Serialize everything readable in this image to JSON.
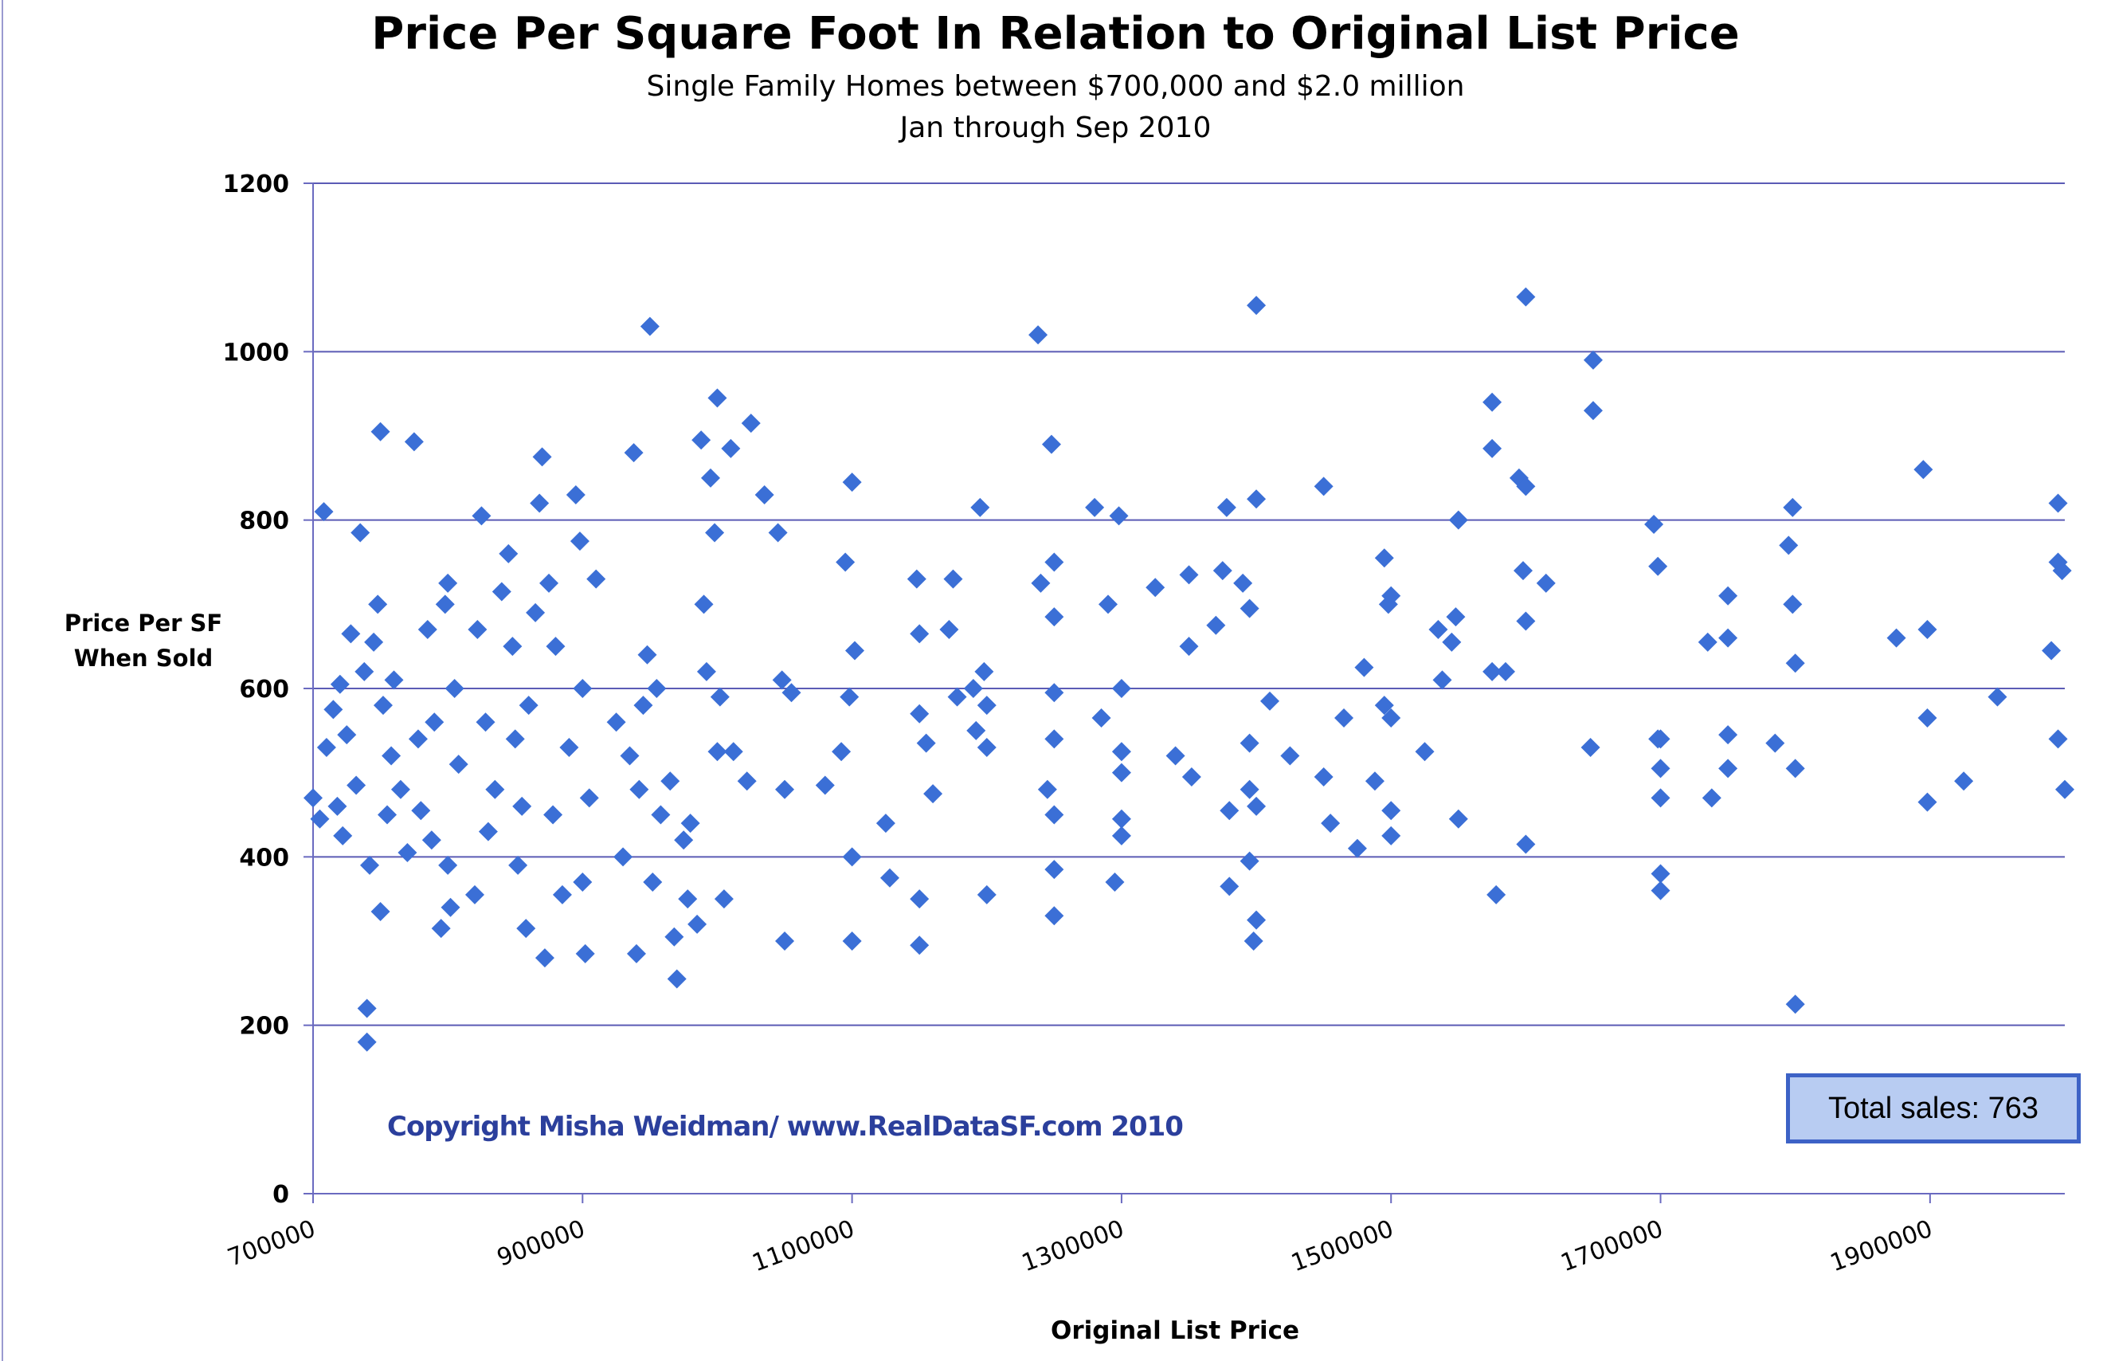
{
  "chart_data": {
    "type": "scatter",
    "title": "Price Per Square Foot In Relation to Original List Price",
    "subtitle": [
      "Single Family Homes between $700,000 and $2.0 million",
      "Jan through Sep 2010"
    ],
    "xlabel": "Original List Price",
    "ylabel": [
      "Price Per SF",
      "When Sold"
    ],
    "xlim": [
      700000,
      2000000
    ],
    "ylim": [
      0,
      1200
    ],
    "xticks": [
      700000,
      900000,
      1100000,
      1300000,
      1500000,
      1700000,
      1900000
    ],
    "yticks": [
      0,
      200,
      400,
      600,
      800,
      1000,
      1200
    ],
    "grid": "horizontal",
    "marker": "diamond",
    "color": "#3b6fd6",
    "annotation": "Copyright Misha Weidman/ www.RealDataSF.com 2010",
    "total_label": "Total sales: 763",
    "points": [
      [
        700000,
        470
      ],
      [
        705000,
        445
      ],
      [
        708000,
        810
      ],
      [
        710000,
        530
      ],
      [
        715000,
        575
      ],
      [
        718000,
        460
      ],
      [
        720000,
        605
      ],
      [
        722000,
        425
      ],
      [
        725000,
        545
      ],
      [
        728000,
        665
      ],
      [
        732000,
        485
      ],
      [
        735000,
        785
      ],
      [
        738000,
        620
      ],
      [
        740000,
        220
      ],
      [
        740000,
        180
      ],
      [
        742000,
        390
      ],
      [
        745000,
        655
      ],
      [
        748000,
        700
      ],
      [
        750000,
        905
      ],
      [
        750000,
        335
      ],
      [
        752000,
        580
      ],
      [
        755000,
        450
      ],
      [
        758000,
        520
      ],
      [
        760000,
        610
      ],
      [
        765000,
        480
      ],
      [
        770000,
        405
      ],
      [
        775000,
        893
      ],
      [
        778000,
        540
      ],
      [
        780000,
        455
      ],
      [
        785000,
        670
      ],
      [
        788000,
        420
      ],
      [
        790000,
        560
      ],
      [
        795000,
        315
      ],
      [
        798000,
        700
      ],
      [
        800000,
        725
      ],
      [
        800000,
        390
      ],
      [
        802000,
        340
      ],
      [
        805000,
        600
      ],
      [
        808000,
        510
      ],
      [
        820000,
        355
      ],
      [
        822000,
        670
      ],
      [
        825000,
        805
      ],
      [
        828000,
        560
      ],
      [
        830000,
        430
      ],
      [
        835000,
        480
      ],
      [
        840000,
        715
      ],
      [
        845000,
        760
      ],
      [
        848000,
        650
      ],
      [
        850000,
        540
      ],
      [
        852000,
        390
      ],
      [
        855000,
        460
      ],
      [
        858000,
        315
      ],
      [
        860000,
        580
      ],
      [
        865000,
        690
      ],
      [
        868000,
        820
      ],
      [
        870000,
        875
      ],
      [
        872000,
        280
      ],
      [
        875000,
        725
      ],
      [
        878000,
        450
      ],
      [
        880000,
        650
      ],
      [
        885000,
        355
      ],
      [
        890000,
        530
      ],
      [
        895000,
        830
      ],
      [
        898000,
        775
      ],
      [
        900000,
        600
      ],
      [
        900000,
        370
      ],
      [
        902000,
        285
      ],
      [
        905000,
        470
      ],
      [
        910000,
        730
      ],
      [
        925000,
        560
      ],
      [
        930000,
        400
      ],
      [
        935000,
        520
      ],
      [
        938000,
        880
      ],
      [
        940000,
        285
      ],
      [
        942000,
        480
      ],
      [
        945000,
        580
      ],
      [
        948000,
        640
      ],
      [
        950000,
        1030
      ],
      [
        952000,
        370
      ],
      [
        955000,
        600
      ],
      [
        958000,
        450
      ],
      [
        965000,
        490
      ],
      [
        968000,
        305
      ],
      [
        970000,
        255
      ],
      [
        975000,
        420
      ],
      [
        978000,
        350
      ],
      [
        980000,
        440
      ],
      [
        985000,
        320
      ],
      [
        988000,
        895
      ],
      [
        990000,
        700
      ],
      [
        992000,
        620
      ],
      [
        995000,
        850
      ],
      [
        998000,
        785
      ],
      [
        1000000,
        945
      ],
      [
        1000000,
        525
      ],
      [
        1002000,
        590
      ],
      [
        1005000,
        350
      ],
      [
        1010000,
        885
      ],
      [
        1012000,
        525
      ],
      [
        1025000,
        915
      ],
      [
        1022000,
        490
      ],
      [
        1035000,
        830
      ],
      [
        1045000,
        785
      ],
      [
        1048000,
        610
      ],
      [
        1050000,
        480
      ],
      [
        1050000,
        300
      ],
      [
        1055000,
        595
      ],
      [
        1080000,
        485
      ],
      [
        1092000,
        525
      ],
      [
        1095000,
        750
      ],
      [
        1098000,
        590
      ],
      [
        1100000,
        845
      ],
      [
        1100000,
        400
      ],
      [
        1100000,
        300
      ],
      [
        1102000,
        645
      ],
      [
        1125000,
        440
      ],
      [
        1128000,
        375
      ],
      [
        1148000,
        730
      ],
      [
        1150000,
        665
      ],
      [
        1150000,
        570
      ],
      [
        1150000,
        350
      ],
      [
        1150000,
        295
      ],
      [
        1155000,
        535
      ],
      [
        1160000,
        475
      ],
      [
        1172000,
        670
      ],
      [
        1175000,
        730
      ],
      [
        1178000,
        590
      ],
      [
        1190000,
        600
      ],
      [
        1192000,
        550
      ],
      [
        1195000,
        815
      ],
      [
        1198000,
        620
      ],
      [
        1200000,
        580
      ],
      [
        1200000,
        530
      ],
      [
        1200000,
        355
      ],
      [
        1240000,
        725
      ],
      [
        1238000,
        1020
      ],
      [
        1245000,
        480
      ],
      [
        1248000,
        890
      ],
      [
        1250000,
        750
      ],
      [
        1250000,
        685
      ],
      [
        1250000,
        595
      ],
      [
        1250000,
        540
      ],
      [
        1250000,
        450
      ],
      [
        1250000,
        385
      ],
      [
        1250000,
        330
      ],
      [
        1280000,
        815
      ],
      [
        1285000,
        565
      ],
      [
        1290000,
        700
      ],
      [
        1295000,
        370
      ],
      [
        1298000,
        805
      ],
      [
        1300000,
        600
      ],
      [
        1300000,
        525
      ],
      [
        1300000,
        500
      ],
      [
        1300000,
        445
      ],
      [
        1300000,
        425
      ],
      [
        1325000,
        720
      ],
      [
        1340000,
        520
      ],
      [
        1350000,
        735
      ],
      [
        1350000,
        650
      ],
      [
        1352000,
        495
      ],
      [
        1370000,
        675
      ],
      [
        1375000,
        740
      ],
      [
        1378000,
        815
      ],
      [
        1380000,
        455
      ],
      [
        1380000,
        365
      ],
      [
        1390000,
        725
      ],
      [
        1395000,
        695
      ],
      [
        1395000,
        535
      ],
      [
        1395000,
        480
      ],
      [
        1395000,
        395
      ],
      [
        1398000,
        300
      ],
      [
        1400000,
        1055
      ],
      [
        1400000,
        825
      ],
      [
        1400000,
        460
      ],
      [
        1400000,
        325
      ],
      [
        1410000,
        585
      ],
      [
        1425000,
        520
      ],
      [
        1450000,
        840
      ],
      [
        1450000,
        495
      ],
      [
        1455000,
        440
      ],
      [
        1465000,
        565
      ],
      [
        1475000,
        410
      ],
      [
        1480000,
        625
      ],
      [
        1488000,
        490
      ],
      [
        1495000,
        755
      ],
      [
        1495000,
        580
      ],
      [
        1498000,
        700
      ],
      [
        1500000,
        710
      ],
      [
        1500000,
        565
      ],
      [
        1500000,
        455
      ],
      [
        1500000,
        425
      ],
      [
        1525000,
        525
      ],
      [
        1535000,
        670
      ],
      [
        1538000,
        610
      ],
      [
        1545000,
        655
      ],
      [
        1548000,
        685
      ],
      [
        1550000,
        800
      ],
      [
        1550000,
        445
      ],
      [
        1575000,
        940
      ],
      [
        1575000,
        885
      ],
      [
        1575000,
        620
      ],
      [
        1578000,
        355
      ],
      [
        1585000,
        620
      ],
      [
        1595000,
        850
      ],
      [
        1598000,
        740
      ],
      [
        1600000,
        1065
      ],
      [
        1600000,
        840
      ],
      [
        1600000,
        680
      ],
      [
        1600000,
        415
      ],
      [
        1615000,
        725
      ],
      [
        1648000,
        530
      ],
      [
        1650000,
        990
      ],
      [
        1650000,
        930
      ],
      [
        1695000,
        795
      ],
      [
        1698000,
        745
      ],
      [
        1698000,
        540
      ],
      [
        1700000,
        540
      ],
      [
        1700000,
        505
      ],
      [
        1700000,
        470
      ],
      [
        1700000,
        380
      ],
      [
        1700000,
        360
      ],
      [
        1735000,
        655
      ],
      [
        1738000,
        470
      ],
      [
        1750000,
        710
      ],
      [
        1750000,
        660
      ],
      [
        1750000,
        545
      ],
      [
        1750000,
        505
      ],
      [
        1785000,
        535
      ],
      [
        1795000,
        770
      ],
      [
        1798000,
        700
      ],
      [
        1798000,
        815
      ],
      [
        1800000,
        630
      ],
      [
        1800000,
        505
      ],
      [
        1800000,
        225
      ],
      [
        1875000,
        660
      ],
      [
        1895000,
        860
      ],
      [
        1898000,
        670
      ],
      [
        1898000,
        565
      ],
      [
        1898000,
        465
      ],
      [
        1925000,
        490
      ],
      [
        1950000,
        590
      ],
      [
        1990000,
        645
      ],
      [
        1995000,
        820
      ],
      [
        1995000,
        750
      ],
      [
        1995000,
        540
      ],
      [
        1998000,
        740
      ],
      [
        2000000,
        480
      ]
    ]
  }
}
